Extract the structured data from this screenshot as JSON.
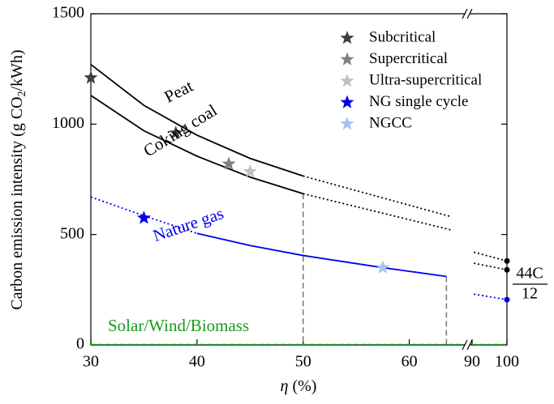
{
  "chart_data": {
    "type": "line",
    "ylabel": [
      "Carbon emission intensity (g CO",
      "2",
      "/kWh)"
    ],
    "xlabel": [
      "η",
      " (%)"
    ],
    "xsegments": [
      [
        30,
        65
      ],
      [
        90,
        100
      ]
    ],
    "xticks": [
      30,
      40,
      50,
      60,
      90,
      100
    ],
    "ylim": [
      0,
      1500
    ],
    "yticks": [
      0,
      500,
      1000,
      1500
    ],
    "series": [
      {
        "name": "Peat",
        "color": "#000000",
        "segments": [
          {
            "style": "solid",
            "x": [
              30,
              35,
              40,
              45,
              50
            ],
            "values": [
              1270,
              1085,
              950,
              845,
              765
            ]
          },
          {
            "style": "dotted",
            "x": [
              50,
              64
            ],
            "values": [
              765,
              580
            ]
          },
          {
            "style": "dotted",
            "x": [
              90.5,
              100
            ],
            "values": [
              420,
              380
            ]
          }
        ]
      },
      {
        "name": "Coking coal",
        "color": "#000000",
        "segments": [
          {
            "style": "solid",
            "x": [
              30,
              35,
              40,
              45,
              50
            ],
            "values": [
              1130,
              970,
              855,
              760,
              685
            ]
          },
          {
            "style": "dotted",
            "x": [
              50,
              64
            ],
            "values": [
              685,
              520
            ]
          },
          {
            "style": "dotted",
            "x": [
              90.5,
              100
            ],
            "values": [
              370,
              340
            ]
          }
        ]
      },
      {
        "name": "Nature gas",
        "color": "#0000ee",
        "segments": [
          {
            "style": "dotted",
            "x": [
              30,
              35,
              40
            ],
            "values": [
              670,
              585,
              505
            ]
          },
          {
            "style": "solid",
            "x": [
              40,
              45,
              50,
              57.5,
              63.5
            ],
            "values": [
              505,
              450,
              405,
              350,
              310
            ]
          },
          {
            "style": "dotted",
            "x": [
              90.5,
              100
            ],
            "values": [
              230,
              205
            ]
          }
        ]
      },
      {
        "name": "Solar/Wind/Biomass",
        "color": "#1a9a1a",
        "segments": [
          {
            "style": "dashed",
            "x": [
              30,
              65
            ],
            "values": [
              0,
              0
            ]
          },
          {
            "style": "dashed",
            "x": [
              90,
              100
            ],
            "values": [
              0,
              0
            ]
          }
        ]
      }
    ],
    "endpoints": {
      "x": 100,
      "values": [
        380,
        340,
        205
      ],
      "colors": [
        "#000000",
        "#000000",
        "#0000ee"
      ]
    },
    "droplines": {
      "x": [
        50,
        63.5
      ],
      "values": [
        685,
        310
      ],
      "color": "#777777"
    },
    "markers": [
      {
        "name": "Subcritical",
        "color": "#404040",
        "x": [
          30,
          38
        ],
        "values": [
          1210,
          960
        ]
      },
      {
        "name": "Supercritical",
        "color": "#808080",
        "x": [
          43
        ],
        "values": [
          820
        ]
      },
      {
        "name": "Ultra-supercritical",
        "color": "#c0c0c0",
        "x": [
          45
        ],
        "values": [
          785
        ]
      },
      {
        "name": "NG single cycle",
        "color": "#0000ee",
        "x": [
          35
        ],
        "values": [
          575
        ]
      },
      {
        "name": "NGCC",
        "color": "#a4c2f4",
        "x": [
          57.5
        ],
        "values": [
          350
        ]
      }
    ],
    "annotation": {
      "numerator": "44C",
      "denominator": "12"
    }
  }
}
